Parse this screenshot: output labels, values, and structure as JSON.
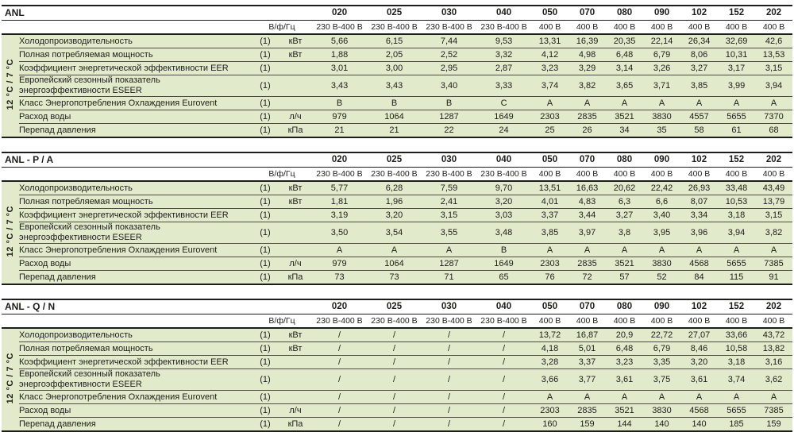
{
  "header": {
    "signal_label": "В/ф/Гц",
    "band_label": "12 °C / 7 °C",
    "models": [
      "020",
      "025",
      "030",
      "040",
      "050",
      "070",
      "080",
      "090",
      "102",
      "152",
      "202"
    ],
    "voltages": [
      "230 В-400 В",
      "230 В-400 В",
      "230 В-400 В",
      "230 В-400 В",
      "400 В",
      "400 В",
      "400 В",
      "400 В",
      "400 В",
      "400 В",
      "400 В"
    ]
  },
  "colors": {
    "row_background": "#e1ebcb",
    "border_dark": "#1d1d1b",
    "row_separator": "#4c4c45"
  },
  "tables": [
    {
      "title": "ANL",
      "rows": [
        {
          "label": "Холодопроизводительность",
          "ref": "(1)",
          "unit": "кВт",
          "values": [
            "5,66",
            "6,15",
            "7,44",
            "9,53",
            "13,31",
            "16,39",
            "20,35",
            "22,14",
            "26,34",
            "32,69",
            "42,6"
          ]
        },
        {
          "label": "Полная потребляемая мощность",
          "ref": "(1)",
          "unit": "кВт",
          "values": [
            "1,88",
            "2,05",
            "2,52",
            "3,32",
            "4,12",
            "4,98",
            "6,48",
            "6,79",
            "8,06",
            "10,31",
            "13,53"
          ]
        },
        {
          "label": "Коэффициент энергетической эффективности EER",
          "ref": "(1)",
          "unit": "",
          "values": [
            "3,01",
            "3,00",
            "2,95",
            "2,87",
            "3,23",
            "3,29",
            "3,14",
            "3,26",
            "3,27",
            "3,17",
            "3,15"
          ]
        },
        {
          "label": "Европейский сезонный показатель энергоэффективности ESEER",
          "ref": "(1)",
          "unit": "",
          "values": [
            "3,43",
            "3,43",
            "3,40",
            "3,33",
            "3,74",
            "3,82",
            "3,65",
            "3,71",
            "3,85",
            "3,99",
            "3,94"
          ]
        },
        {
          "label": "Класс Энергопотребления Охлаждения Eurovent",
          "ref": "(1)",
          "unit": "",
          "values": [
            "B",
            "B",
            "B",
            "C",
            "A",
            "A",
            "A",
            "A",
            "A",
            "A",
            "A"
          ]
        },
        {
          "label": "Расход воды",
          "ref": "(1)",
          "unit": "л/ч",
          "values": [
            "979",
            "1064",
            "1287",
            "1649",
            "2303",
            "2835",
            "3521",
            "3830",
            "4557",
            "5655",
            "7370"
          ]
        },
        {
          "label": "Перепад давления",
          "ref": "(1)",
          "unit": "кПа",
          "values": [
            "21",
            "21",
            "22",
            "24",
            "25",
            "26",
            "34",
            "35",
            "58",
            "61",
            "68"
          ]
        }
      ]
    },
    {
      "title": "ANL - P / A",
      "rows": [
        {
          "label": "Холодопроизводительность",
          "ref": "(1)",
          "unit": "кВт",
          "values": [
            "5,77",
            "6,28",
            "7,59",
            "9,70",
            "13,51",
            "16,63",
            "20,62",
            "22,42",
            "26,93",
            "33,48",
            "43,49"
          ]
        },
        {
          "label": "Полная потребляемая мощность",
          "ref": "(1)",
          "unit": "кВт",
          "values": [
            "1,81",
            "1,96",
            "2,41",
            "3,20",
            "4,01",
            "4,83",
            "6,3",
            "6,6",
            "8,07",
            "10,53",
            "13,79"
          ]
        },
        {
          "label": "Коэффициент энергетической эффективности EER",
          "ref": "(1)",
          "unit": "",
          "values": [
            "3,19",
            "3,20",
            "3,15",
            "3,03",
            "3,37",
            "3,44",
            "3,27",
            "3,40",
            "3,34",
            "3,18",
            "3,15"
          ]
        },
        {
          "label": "Европейский сезонный показатель энергоэффективности ESEER",
          "ref": "(1)",
          "unit": "",
          "values": [
            "3,50",
            "3,54",
            "3,55",
            "3,48",
            "3,85",
            "3,97",
            "3,8",
            "3,95",
            "3,96",
            "3,94",
            "3,82"
          ]
        },
        {
          "label": "Класс Энергопотребления Охлаждения Eurovent",
          "ref": "(1)",
          "unit": "",
          "values": [
            "A",
            "A",
            "A",
            "B",
            "A",
            "A",
            "A",
            "A",
            "A",
            "A",
            "A"
          ]
        },
        {
          "label": "Расход воды",
          "ref": "(1)",
          "unit": "л/ч",
          "values": [
            "979",
            "1064",
            "1287",
            "1649",
            "2303",
            "2835",
            "3521",
            "3830",
            "4568",
            "5655",
            "7385"
          ]
        },
        {
          "label": "Перепад давления",
          "ref": "(1)",
          "unit": "кПа",
          "values": [
            "73",
            "73",
            "71",
            "65",
            "76",
            "72",
            "57",
            "52",
            "84",
            "115",
            "91"
          ]
        }
      ]
    },
    {
      "title": "ANL - Q / N",
      "rows": [
        {
          "label": "Холодопроизводительность",
          "ref": "(1)",
          "unit": "кВт",
          "values": [
            "/",
            "/",
            "/",
            "/",
            "13,72",
            "16,87",
            "20,9",
            "22,72",
            "27,07",
            "33,66",
            "43,72"
          ]
        },
        {
          "label": "Полная потребляемая мощность",
          "ref": "(1)",
          "unit": "кВт",
          "values": [
            "/",
            "/",
            "/",
            "/",
            "4,18",
            "5,01",
            "6,48",
            "6,79",
            "8,46",
            "10,58",
            "13,82"
          ]
        },
        {
          "label": "Коэффициент энергетической эффективности EER",
          "ref": "(1)",
          "unit": "",
          "values": [
            "/",
            "/",
            "/",
            "/",
            "3,28",
            "3,37",
            "3,23",
            "3,35",
            "3,20",
            "3,18",
            "3,16"
          ]
        },
        {
          "label": "Европейский сезонный показатель энергоэффективности ESEER",
          "ref": "(1)",
          "unit": "",
          "values": [
            "/",
            "/",
            "/",
            "/",
            "3,66",
            "3,77",
            "3,61",
            "3,75",
            "3,61",
            "3,74",
            "3,62"
          ]
        },
        {
          "label": "Класс Энергопотребления Охлаждения Eurovent",
          "ref": "(1)",
          "unit": "",
          "values": [
            "/",
            "/",
            "/",
            "/",
            "A",
            "A",
            "A",
            "A",
            "A",
            "A",
            "A"
          ]
        },
        {
          "label": "Расход воды",
          "ref": "(1)",
          "unit": "л/ч",
          "values": [
            "/",
            "/",
            "/",
            "/",
            "2303",
            "2835",
            "3521",
            "3830",
            "4568",
            "5655",
            "7385"
          ]
        },
        {
          "label": "Перепад давления",
          "ref": "(1)",
          "unit": "кПа",
          "values": [
            "/",
            "/",
            "/",
            "/",
            "160",
            "159",
            "144",
            "140",
            "140",
            "185",
            "159"
          ]
        }
      ]
    }
  ]
}
